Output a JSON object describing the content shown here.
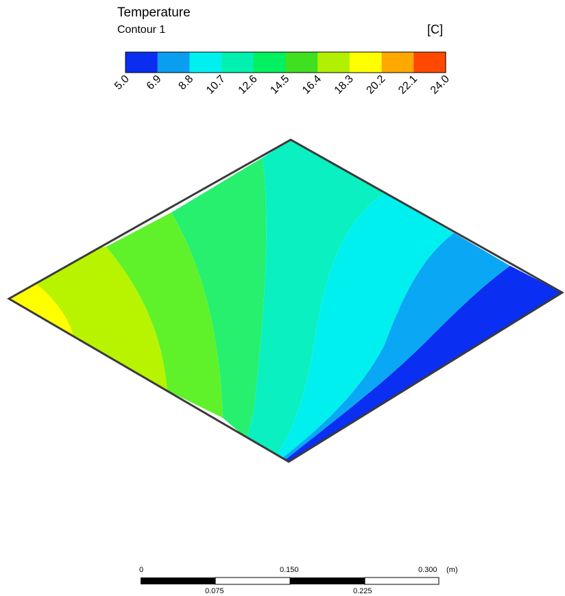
{
  "legend": {
    "title": "Temperature",
    "subtitle": "Contour 1",
    "unit": "[C]",
    "ticks": [
      "5.0",
      "6.9",
      "8.8",
      "10.7",
      "12.6",
      "14.5",
      "16.4",
      "18.3",
      "20.2",
      "22.1",
      "24.0"
    ],
    "colors": [
      "#0a2ef0",
      "#0a9ef0",
      "#00f0f0",
      "#00f0b0",
      "#00f060",
      "#40e020",
      "#b0f000",
      "#ffff00",
      "#ffa800",
      "#ff4800"
    ]
  },
  "contour_colors": {
    "edge": "#ff9f1a",
    "band_20": "#ffff00",
    "band_18": "#b8f400",
    "band_16": "#5ff22a",
    "band_14": "#26f06e",
    "band_12": "#0af0c0",
    "band_10": "#00f0f0",
    "band_8": "#0aa8f4",
    "band_6": "#0a2ef2"
  },
  "scale_bar": {
    "top_labels": [
      "0",
      "0.150",
      "0.300"
    ],
    "unit": "(m)",
    "bottom_labels": [
      "0.075",
      "0.225"
    ]
  }
}
